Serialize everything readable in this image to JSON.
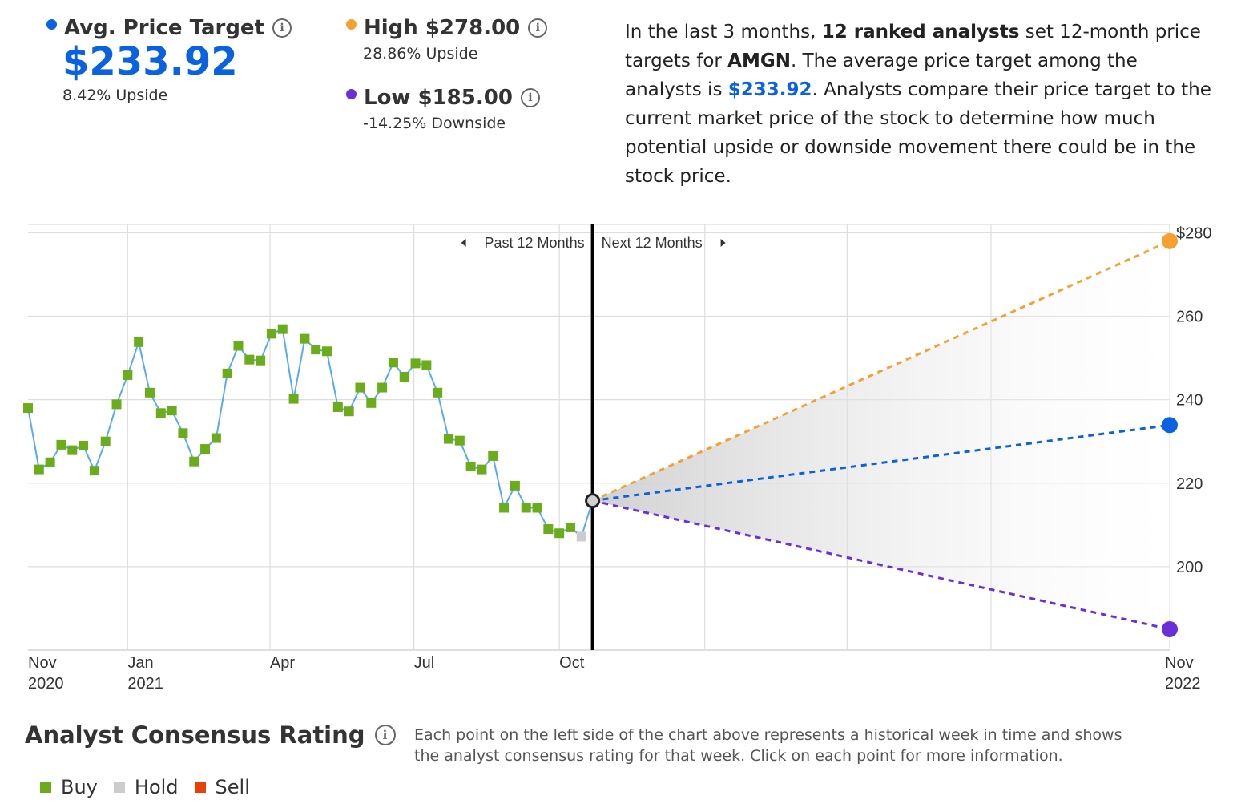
{
  "avg": {
    "label": "Avg. Price Target",
    "value": "$233.92",
    "upside": "8.42% Upside",
    "color": "#0a62e0"
  },
  "high": {
    "label": "High $278.00",
    "upside": "28.86% Upside",
    "color": "#f5a030"
  },
  "low": {
    "label": "Low $185.00",
    "downside": "-14.25% Downside",
    "color": "#6a2fd8"
  },
  "info_glyph": "i",
  "summary": {
    "p1": "In the last 3 months, ",
    "b1": "12 ranked analysts",
    "p2": " set 12-month price targets for ",
    "b2": "AMGN",
    "p3": ". The average price target among the analysts is ",
    "hl": "$233.92",
    "p4": ". Analysts compare their price target to the current market price of the stock to determine how much potential upside or downside movement there could be in the stock price."
  },
  "chart_data": {
    "type": "line",
    "past_label": "Past 12 Months",
    "next_label": "Next 12 Months",
    "x_ticks": [
      {
        "label": "Nov",
        "sub": "2020"
      },
      {
        "label": "Jan",
        "sub": "2021"
      },
      {
        "label": "Apr",
        "sub": ""
      },
      {
        "label": "Jul",
        "sub": ""
      },
      {
        "label": "Oct",
        "sub": ""
      },
      {
        "label": "Nov",
        "sub": "2022"
      }
    ],
    "y_ticks": [
      "$280",
      "260",
      "240",
      "220",
      "200"
    ],
    "y_tick_values": [
      280,
      260,
      240,
      220,
      200
    ],
    "ylim": [
      180,
      282
    ],
    "history": [
      {
        "date": "2020-10-30",
        "price": 238.0,
        "rating": "Buy"
      },
      {
        "date": "2020-11-06",
        "price": 223.3,
        "rating": "Buy"
      },
      {
        "date": "2020-11-13",
        "price": 225.0,
        "rating": "Buy"
      },
      {
        "date": "2020-11-20",
        "price": 229.2,
        "rating": "Buy"
      },
      {
        "date": "2020-11-27",
        "price": 227.9,
        "rating": "Buy"
      },
      {
        "date": "2020-12-04",
        "price": 229.0,
        "rating": "Buy"
      },
      {
        "date": "2020-12-11",
        "price": 223.0,
        "rating": "Buy"
      },
      {
        "date": "2020-12-18",
        "price": 230.0,
        "rating": "Buy"
      },
      {
        "date": "2020-12-25",
        "price": 238.9,
        "rating": "Buy"
      },
      {
        "date": "2021-01-01",
        "price": 245.9,
        "rating": "Buy"
      },
      {
        "date": "2021-01-08",
        "price": 253.8,
        "rating": "Buy"
      },
      {
        "date": "2021-01-15",
        "price": 241.7,
        "rating": "Buy"
      },
      {
        "date": "2021-01-22",
        "price": 236.8,
        "rating": "Buy"
      },
      {
        "date": "2021-01-29",
        "price": 237.4,
        "rating": "Buy"
      },
      {
        "date": "2021-02-05",
        "price": 232.0,
        "rating": "Buy"
      },
      {
        "date": "2021-02-12",
        "price": 225.2,
        "rating": "Buy"
      },
      {
        "date": "2021-02-19",
        "price": 228.2,
        "rating": "Buy"
      },
      {
        "date": "2021-02-26",
        "price": 230.8,
        "rating": "Buy"
      },
      {
        "date": "2021-03-05",
        "price": 246.3,
        "rating": "Buy"
      },
      {
        "date": "2021-03-12",
        "price": 252.9,
        "rating": "Buy"
      },
      {
        "date": "2021-03-19",
        "price": 249.6,
        "rating": "Buy"
      },
      {
        "date": "2021-03-26",
        "price": 249.4,
        "rating": "Buy"
      },
      {
        "date": "2021-04-02",
        "price": 255.8,
        "rating": "Buy"
      },
      {
        "date": "2021-04-09",
        "price": 256.9,
        "rating": "Buy"
      },
      {
        "date": "2021-04-16",
        "price": 240.2,
        "rating": "Buy"
      },
      {
        "date": "2021-04-23",
        "price": 254.6,
        "rating": "Buy"
      },
      {
        "date": "2021-04-30",
        "price": 252.0,
        "rating": "Buy"
      },
      {
        "date": "2021-05-07",
        "price": 251.6,
        "rating": "Buy"
      },
      {
        "date": "2021-05-14",
        "price": 238.2,
        "rating": "Buy"
      },
      {
        "date": "2021-05-21",
        "price": 237.2,
        "rating": "Buy"
      },
      {
        "date": "2021-05-28",
        "price": 242.9,
        "rating": "Buy"
      },
      {
        "date": "2021-06-04",
        "price": 239.2,
        "rating": "Buy"
      },
      {
        "date": "2021-06-11",
        "price": 242.9,
        "rating": "Buy"
      },
      {
        "date": "2021-06-18",
        "price": 248.9,
        "rating": "Buy"
      },
      {
        "date": "2021-06-25",
        "price": 245.5,
        "rating": "Buy"
      },
      {
        "date": "2021-07-02",
        "price": 248.7,
        "rating": "Buy"
      },
      {
        "date": "2021-07-09",
        "price": 248.3,
        "rating": "Buy"
      },
      {
        "date": "2021-07-16",
        "price": 241.7,
        "rating": "Buy"
      },
      {
        "date": "2021-07-23",
        "price": 230.6,
        "rating": "Buy"
      },
      {
        "date": "2021-07-30",
        "price": 230.2,
        "rating": "Buy"
      },
      {
        "date": "2021-08-06",
        "price": 224.0,
        "rating": "Buy"
      },
      {
        "date": "2021-08-13",
        "price": 223.3,
        "rating": "Buy"
      },
      {
        "date": "2021-08-20",
        "price": 226.5,
        "rating": "Buy"
      },
      {
        "date": "2021-08-27",
        "price": 214.1,
        "rating": "Buy"
      },
      {
        "date": "2021-09-03",
        "price": 219.4,
        "rating": "Buy"
      },
      {
        "date": "2021-09-10",
        "price": 214.1,
        "rating": "Buy"
      },
      {
        "date": "2021-09-17",
        "price": 214.1,
        "rating": "Buy"
      },
      {
        "date": "2021-09-24",
        "price": 209.0,
        "rating": "Buy"
      },
      {
        "date": "2021-10-01",
        "price": 208.0,
        "rating": "Buy"
      },
      {
        "date": "2021-10-08",
        "price": 209.4,
        "rating": "Buy"
      },
      {
        "date": "2021-10-15",
        "price": 207.2,
        "rating": "Hold"
      }
    ],
    "current": {
      "date": "2021-10-22",
      "price": 215.8
    },
    "projections": [
      {
        "name": "High",
        "date": "2022-10-22",
        "price": 278.0,
        "color": "#f5a030"
      },
      {
        "name": "Avg",
        "date": "2022-10-22",
        "price": 233.92,
        "color": "#0a62e0"
      },
      {
        "name": "Low",
        "date": "2022-10-22",
        "price": 185.0,
        "color": "#6a2fd8"
      }
    ],
    "rating_colors": {
      "Buy": "#6aac1a",
      "Hold": "#cccccc",
      "Sell": "#e8400a"
    },
    "line_color": "#5aaaf0"
  },
  "rating": {
    "title": "Analyst Consensus Rating",
    "note": "Each point on the left side of the chart above represents a historical week in time and shows the analyst consensus rating for that week. Click on each point for more information.",
    "legend": [
      {
        "label": "Buy",
        "color": "#6aac1a"
      },
      {
        "label": "Hold",
        "color": "#cccccc"
      },
      {
        "label": "Sell",
        "color": "#e8400a"
      }
    ]
  }
}
